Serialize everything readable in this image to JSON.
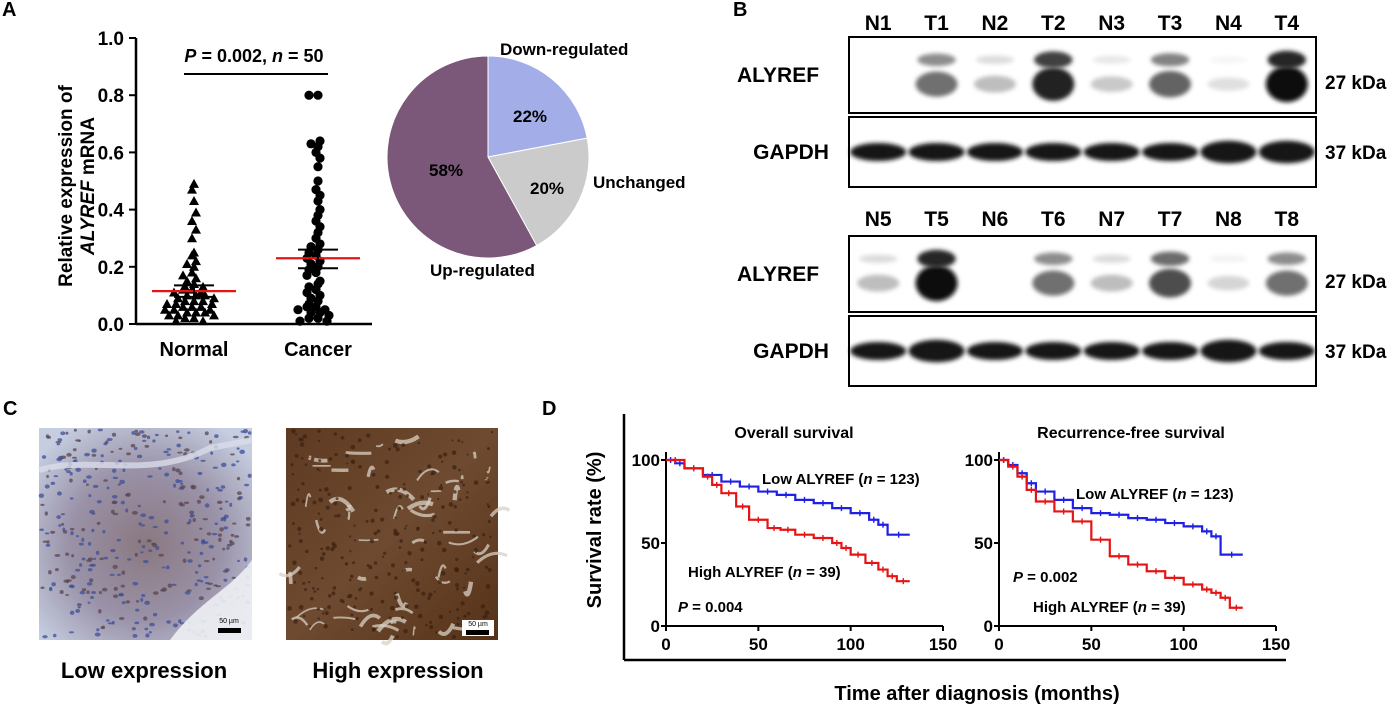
{
  "panels": {
    "A": {
      "letter": "A",
      "ylabel_prefix": "Relative expression of",
      "ylabel_gene": "ALYREF",
      "ylabel_suffix": " mRNA",
      "stat_p_label": "P",
      "stat_p_value": "= 0.002,",
      "stat_n_label": "n",
      "stat_n_value": "= 50"
    },
    "B": {
      "letter": "B",
      "block1": {
        "lanes": [
          "N1",
          "T1",
          "N2",
          "T2",
          "N3",
          "T3",
          "N4",
          "T4"
        ],
        "alyref_label": "ALYREF",
        "alyref_size": "27 kDa",
        "gapdh_label": "GAPDH",
        "gapdh_size": "37 kDa",
        "alyref_intensity": [
          0.0,
          0.55,
          0.2,
          0.9,
          0.15,
          0.6,
          0.05,
          1.0
        ]
      },
      "block2": {
        "lanes": [
          "N5",
          "T5",
          "N6",
          "T6",
          "N7",
          "T7",
          "N8",
          "T8"
        ],
        "alyref_label": "ALYREF",
        "alyref_size": "27 kDa",
        "gapdh_label": "GAPDH",
        "gapdh_size": "37 kDa",
        "alyref_intensity": [
          0.2,
          1.0,
          0.0,
          0.55,
          0.2,
          0.7,
          0.1,
          0.55
        ]
      }
    },
    "C": {
      "letter": "C",
      "low_caption": "Low expression",
      "high_caption": "High expression",
      "scale_bar_label": "50 µm"
    },
    "D": {
      "letter": "D",
      "ylabel": "Survival rate (%)",
      "xlabel": "Time after diagnosis  (months)",
      "os_title": "Overall survival",
      "rfs_title": "Recurrence-free survival",
      "os_low_text": "Low ALYREF (",
      "os_low_n": "n",
      "os_low_tail": " = 123)",
      "os_high_text": "High ALYREF (",
      "os_high_n": "n",
      "os_high_tail": " = 39)",
      "os_p_label": "P",
      "os_p_value": " = 0.004",
      "rfs_low_text": "Low ALYREF (",
      "rfs_low_n": "n",
      "rfs_low_tail": " = 123)",
      "rfs_high_text": "High ALYREF (",
      "rfs_high_n": "n",
      "rfs_high_tail": " = 39)",
      "rfs_p_label": "P",
      "rfs_p_value": " = 0.002"
    }
  },
  "colors": {
    "low": "#1f1fe6",
    "high": "#e61414",
    "mean_line": "#e61414",
    "pie_up": "#7b5779",
    "pie_down": "#a3aee8",
    "pie_unchanged": "#cbcbcb"
  },
  "chart_data": [
    {
      "type": "scatter",
      "id": "A-scatter",
      "categories": [
        "Normal",
        "Cancer"
      ],
      "ylim": [
        0,
        1.0
      ],
      "yticks": [
        "0.0",
        "0.2",
        "0.4",
        "0.6",
        "0.8",
        "1.0"
      ],
      "series": [
        {
          "name": "Normal",
          "marker": "triangle",
          "mean": 0.115,
          "sem_low": 0.095,
          "sem_high": 0.135,
          "values": [
            0.49,
            0.47,
            0.43,
            0.39,
            0.36,
            0.33,
            0.3,
            0.25,
            0.24,
            0.22,
            0.21,
            0.2,
            0.18,
            0.17,
            0.16,
            0.15,
            0.14,
            0.13,
            0.13,
            0.12,
            0.12,
            0.11,
            0.11,
            0.1,
            0.1,
            0.1,
            0.09,
            0.09,
            0.08,
            0.08,
            0.08,
            0.07,
            0.07,
            0.07,
            0.06,
            0.06,
            0.06,
            0.05,
            0.05,
            0.05,
            0.04,
            0.04,
            0.04,
            0.03,
            0.03,
            0.03,
            0.02,
            0.02,
            0.01,
            0.01
          ]
        },
        {
          "name": "Cancer",
          "marker": "circle",
          "mean": 0.23,
          "sem_low": 0.195,
          "sem_high": 0.26,
          "values": [
            0.8,
            0.8,
            0.64,
            0.63,
            0.62,
            0.6,
            0.58,
            0.55,
            0.5,
            0.47,
            0.45,
            0.43,
            0.4,
            0.38,
            0.36,
            0.34,
            0.32,
            0.3,
            0.28,
            0.27,
            0.26,
            0.25,
            0.24,
            0.23,
            0.22,
            0.21,
            0.2,
            0.19,
            0.18,
            0.17,
            0.15,
            0.14,
            0.13,
            0.12,
            0.11,
            0.1,
            0.09,
            0.08,
            0.07,
            0.06,
            0.06,
            0.05,
            0.05,
            0.04,
            0.04,
            0.03,
            0.02,
            0.02,
            0.01,
            0.01
          ]
        }
      ]
    },
    {
      "type": "pie",
      "id": "A-pie",
      "slices": [
        {
          "name": "Down-regulated",
          "value": 22,
          "label": "22%"
        },
        {
          "name": "Unchanged",
          "value": 20,
          "label": "20%"
        },
        {
          "name": "Up-regulated",
          "value": 58,
          "label": "58%"
        }
      ]
    },
    {
      "type": "line",
      "id": "D-os",
      "title": "Overall survival",
      "xlim": [
        0,
        150
      ],
      "ylim": [
        0,
        100
      ],
      "xticks": [
        "0",
        "50",
        "100",
        "150"
      ],
      "yticks": [
        "0",
        "50",
        "100"
      ],
      "series": [
        {
          "name": "Low ALYREF",
          "x": [
            0,
            5,
            10,
            20,
            30,
            40,
            50,
            60,
            70,
            80,
            90,
            100,
            110,
            115,
            120,
            132
          ],
          "y": [
            100,
            98,
            95,
            91,
            87,
            84,
            81,
            79,
            76,
            74,
            71,
            68,
            64,
            61,
            55,
            55
          ]
        },
        {
          "name": "High ALYREF",
          "x": [
            0,
            10,
            20,
            25,
            30,
            38,
            45,
            55,
            62,
            70,
            80,
            90,
            95,
            100,
            108,
            115,
            120,
            125,
            132
          ],
          "y": [
            100,
            95,
            90,
            85,
            80,
            72,
            64,
            59,
            58,
            55,
            53,
            50,
            47,
            43,
            38,
            34,
            30,
            27,
            27
          ]
        }
      ]
    },
    {
      "type": "line",
      "id": "D-rfs",
      "title": "Recurrence-free survival",
      "xlim": [
        0,
        150
      ],
      "ylim": [
        0,
        100
      ],
      "xticks": [
        "0",
        "50",
        "100",
        "150"
      ],
      "yticks": [
        "0",
        "50",
        "100"
      ],
      "series": [
        {
          "name": "Low ALYREF",
          "x": [
            0,
            5,
            10,
            15,
            20,
            30,
            40,
            50,
            60,
            70,
            80,
            90,
            100,
            110,
            115,
            120,
            132
          ],
          "y": [
            100,
            97,
            92,
            86,
            81,
            76,
            71,
            68,
            67,
            65,
            64,
            62,
            60,
            57,
            54,
            43,
            43
          ]
        },
        {
          "name": "High ALYREF",
          "x": [
            0,
            5,
            10,
            15,
            20,
            30,
            40,
            50,
            60,
            70,
            80,
            90,
            100,
            110,
            115,
            120,
            125,
            132
          ],
          "y": [
            100,
            96,
            90,
            82,
            75,
            69,
            63,
            52,
            42,
            37,
            33,
            29,
            25,
            22,
            20,
            17,
            11,
            11
          ]
        }
      ]
    }
  ]
}
